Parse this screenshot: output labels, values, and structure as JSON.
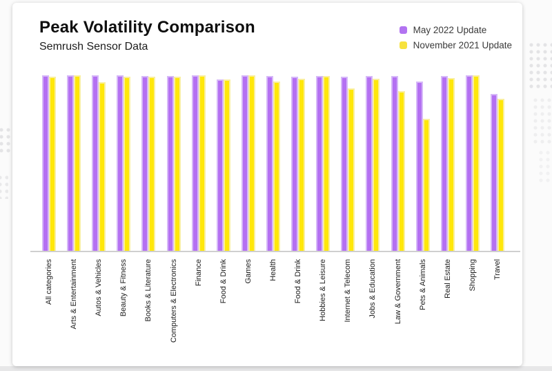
{
  "header": {
    "title": "Peak Volatility Comparison",
    "subtitle": "Semrush Sensor Data"
  },
  "legend": {
    "items": [
      {
        "label": "May 2022 Update",
        "color": "#b273f1"
      },
      {
        "label": "November 2021 Update",
        "color": "#f7e23e"
      }
    ]
  },
  "chart_data": {
    "type": "bar",
    "title": "Peak Volatility Comparison",
    "subtitle": "Semrush Sensor Data",
    "categories": [
      "All categories",
      "Arts & Entertainment",
      "Autos & Vehicles",
      "Beauty & Fitness",
      "Books & Literature",
      "Computers & Electronics",
      "Finance",
      "Food & Drink",
      "Games",
      "Health",
      "Food & Drink",
      "Hobbies & Leisure",
      "Internet & Telecom",
      "Jobs & Education",
      "Law & Government",
      "Pets & Animals",
      "Real Estate",
      "Shopping",
      "Travel"
    ],
    "series": [
      {
        "name": "May 2022 Update",
        "color": "#b470f2",
        "edge_color": "#d6b8f8",
        "values": [
          9.85,
          9.85,
          9.85,
          9.85,
          9.8,
          9.8,
          9.85,
          9.6,
          9.85,
          9.8,
          9.75,
          9.8,
          9.75,
          9.8,
          9.8,
          9.5,
          9.8,
          9.85,
          8.8
        ]
      },
      {
        "name": "November 2021 Update",
        "color": "#ffe70a",
        "edge_color": "#f9ef9e",
        "values": [
          9.75,
          9.85,
          9.45,
          9.75,
          9.75,
          9.75,
          9.85,
          9.6,
          9.85,
          9.5,
          9.65,
          9.8,
          9.1,
          9.65,
          8.95,
          7.4,
          9.7,
          9.85,
          8.55
        ]
      }
    ],
    "ylim": [
      0,
      10
    ],
    "grid": false,
    "y_axis_visible": false,
    "legend_position": "top-right",
    "axis_line_color": "#cfcfcf",
    "x_label_rotation": "vertical-bottom-to-top"
  }
}
